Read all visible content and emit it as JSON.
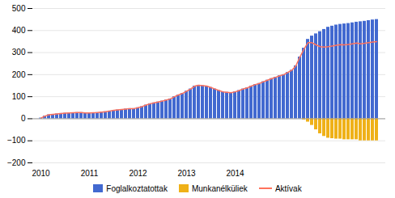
{
  "chart_data": {
    "type": "bar",
    "categories": [
      "2010",
      null,
      null,
      null,
      null,
      null,
      null,
      null,
      null,
      null,
      null,
      null,
      "2011",
      null,
      null,
      null,
      null,
      null,
      null,
      null,
      null,
      null,
      null,
      null,
      "2012",
      null,
      null,
      null,
      null,
      null,
      null,
      null,
      null,
      null,
      null,
      null,
      "2013",
      null,
      null,
      null,
      null,
      null,
      null,
      null,
      null,
      null,
      null,
      null,
      "2014",
      null,
      null,
      null,
      null,
      null,
      null,
      null,
      null,
      null,
      null,
      null,
      null,
      null,
      null,
      null,
      null,
      null,
      null,
      null,
      null,
      null,
      null,
      null,
      null,
      null,
      null,
      null,
      null,
      null,
      null,
      null,
      null,
      null,
      null,
      null
    ],
    "series": [
      {
        "name": "Foglalkoztatottak",
        "type": "bar",
        "values": [
          3,
          12,
          18,
          20,
          22,
          24,
          25,
          26,
          27,
          28,
          28,
          26,
          26,
          27,
          28,
          30,
          32,
          35,
          38,
          40,
          42,
          44,
          46,
          46,
          50,
          55,
          62,
          68,
          72,
          76,
          80,
          85,
          90,
          100,
          108,
          115,
          125,
          135,
          148,
          152,
          150,
          148,
          142,
          135,
          128,
          122,
          120,
          118,
          122,
          128,
          135,
          140,
          148,
          155,
          160,
          168,
          175,
          182,
          188,
          195,
          200,
          210,
          220,
          240,
          280,
          320,
          360,
          375,
          385,
          395,
          405,
          415,
          420,
          425,
          428,
          430,
          432,
          435,
          438,
          440,
          442,
          445,
          448,
          450
        ]
      },
      {
        "name": "Munkanélküliek",
        "type": "bar",
        "values": [
          0,
          0,
          0,
          0,
          0,
          0,
          0,
          0,
          0,
          0,
          0,
          0,
          0,
          0,
          0,
          0,
          0,
          0,
          0,
          0,
          0,
          0,
          0,
          0,
          0,
          0,
          0,
          0,
          0,
          0,
          0,
          0,
          0,
          0,
          0,
          0,
          0,
          0,
          0,
          0,
          0,
          0,
          0,
          0,
          0,
          0,
          0,
          0,
          0,
          0,
          0,
          0,
          0,
          0,
          0,
          0,
          0,
          0,
          0,
          0,
          0,
          0,
          0,
          0,
          0,
          -5,
          -15,
          -30,
          -50,
          -68,
          -80,
          -88,
          -90,
          -92,
          -92,
          -95,
          -95,
          -95,
          -95,
          -100,
          -100,
          -100,
          -100,
          -100
        ]
      },
      {
        "name": "Aktívak",
        "type": "line",
        "values": [
          3,
          12,
          18,
          20,
          22,
          24,
          25,
          26,
          27,
          28,
          28,
          26,
          26,
          27,
          28,
          30,
          32,
          35,
          38,
          40,
          42,
          44,
          46,
          46,
          50,
          55,
          62,
          68,
          72,
          76,
          80,
          85,
          90,
          100,
          108,
          115,
          125,
          135,
          148,
          152,
          150,
          148,
          142,
          135,
          128,
          122,
          120,
          118,
          122,
          128,
          135,
          140,
          148,
          155,
          160,
          168,
          175,
          182,
          188,
          195,
          200,
          210,
          220,
          240,
          280,
          315,
          345,
          345,
          335,
          327,
          325,
          327,
          330,
          333,
          336,
          335,
          337,
          340,
          343,
          340,
          342,
          345,
          348,
          350
        ]
      }
    ],
    "ylim": [
      -200,
      500
    ],
    "yticks": [
      -200,
      -100,
      0,
      100,
      200,
      300,
      400,
      500
    ],
    "grid": true,
    "legend": "bottom"
  }
}
